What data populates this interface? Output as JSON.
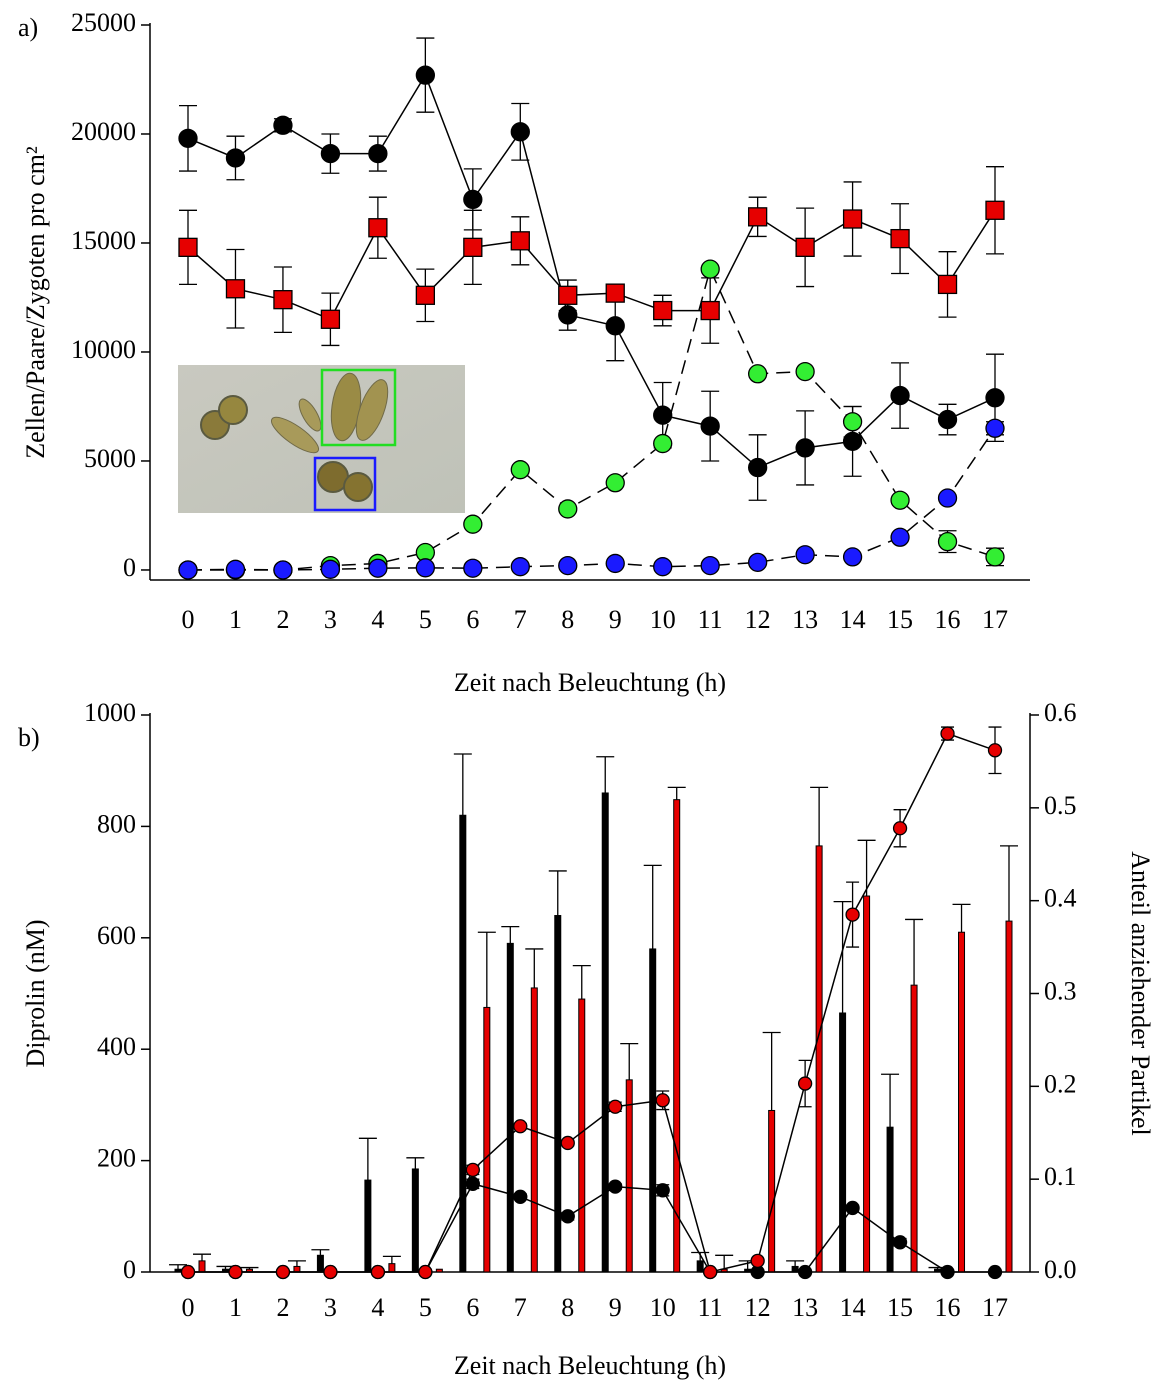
{
  "chart_data": [
    {
      "type": "line",
      "label": "a)",
      "ylabel": "Zellen/Paare/Zygoten pro cm²",
      "xlabel": "Zeit nach Beleuchtung (h)",
      "categories": [
        "0",
        "1",
        "2",
        "3",
        "4",
        "5",
        "6",
        "7",
        "8",
        "9",
        "10",
        "11",
        "12",
        "13",
        "14",
        "15",
        "16",
        "17"
      ],
      "ylim": [
        -460,
        25000
      ],
      "yticks": [
        0,
        5000,
        10000,
        15000,
        20000,
        25000
      ],
      "series": [
        {
          "color": "#000000",
          "marker": "circle",
          "dashed": false,
          "values": [
            19800,
            18900,
            20400,
            19100,
            19100,
            22700,
            17000,
            20100,
            11700,
            11200,
            7100,
            6600,
            4700,
            5600,
            5900,
            8000,
            6900,
            7900
          ],
          "errors": [
            1500,
            1000,
            300,
            900,
            800,
            1700,
            1400,
            1300,
            700,
            1600,
            1500,
            1600,
            1500,
            1700,
            1600,
            1500,
            700,
            2000
          ]
        },
        {
          "color": "#e60000",
          "marker": "square",
          "dashed": false,
          "values": [
            14800,
            12900,
            12400,
            11500,
            15700,
            12600,
            14800,
            15100,
            12600,
            12700,
            11900,
            11900,
            16200,
            14800,
            16100,
            15200,
            13100,
            16500
          ],
          "errors": [
            1700,
            1800,
            1500,
            1200,
            1400,
            1200,
            1700,
            1100,
            700,
            300,
            700,
            1500,
            900,
            1800,
            1700,
            1600,
            1500,
            2000
          ]
        },
        {
          "color": "#33ee33",
          "marker": "circle",
          "dashed": true,
          "values": [
            0,
            0,
            0,
            200,
            300,
            800,
            2100,
            4600,
            2800,
            4000,
            5800,
            13800,
            9000,
            9100,
            6800,
            3200,
            1300,
            600
          ],
          "errors": [
            0,
            0,
            0,
            0,
            0,
            0,
            0,
            0,
            0,
            0,
            0,
            0,
            0,
            0,
            700,
            0,
            500,
            400
          ]
        },
        {
          "color": "#1a1aff",
          "marker": "circle",
          "dashed": true,
          "values": [
            0,
            30,
            0,
            30,
            80,
            100,
            80,
            150,
            200,
            300,
            150,
            200,
            350,
            700,
            600,
            1500,
            3300,
            6500
          ],
          "errors": [
            0,
            0,
            0,
            0,
            0,
            0,
            0,
            0,
            0,
            0,
            0,
            0,
            0,
            0,
            0,
            0,
            0,
            300
          ]
        }
      ]
    },
    {
      "type": "bar",
      "label": "b)",
      "ylabel": "Diprolin (nM)",
      "y2label": "Anteil anziehender Partikel",
      "xlabel": "Zeit nach Beleuchtung (h)",
      "categories": [
        "0",
        "1",
        "2",
        "3",
        "4",
        "5",
        "6",
        "7",
        "8",
        "9",
        "10",
        "11",
        "12",
        "13",
        "14",
        "15",
        "16",
        "17"
      ],
      "ylim": [
        0,
        1000
      ],
      "yticks": [
        0,
        200,
        400,
        600,
        800,
        1000
      ],
      "y2lim": [
        0,
        0.6
      ],
      "y2ticks": [
        {
          "value": 0,
          "label": "0.0"
        },
        0.1,
        0.2,
        0.3,
        0.4,
        0.5,
        0.6
      ],
      "series": [
        {
          "type": "bar",
          "color": "#000000",
          "values": [
            5,
            5,
            0,
            30,
            165,
            185,
            820,
            590,
            640,
            860,
            580,
            20,
            5,
            10,
            465,
            260,
            5,
            0
          ],
          "errors": [
            8,
            5,
            0,
            10,
            75,
            20,
            110,
            30,
            80,
            65,
            150,
            15,
            15,
            10,
            200,
            95,
            3,
            0
          ]
        },
        {
          "type": "bar",
          "color": "#e60000",
          "values": [
            20,
            5,
            10,
            0,
            15,
            5,
            475,
            510,
            490,
            345,
            848,
            5,
            290,
            765,
            675,
            515,
            610,
            630
          ],
          "errors": [
            12,
            3,
            10,
            0,
            13,
            0,
            135,
            70,
            60,
            65,
            22,
            25,
            140,
            105,
            100,
            118,
            50,
            135
          ]
        },
        {
          "type": "line",
          "axis": "y2",
          "color": "#000000",
          "values": [
            0,
            0,
            0,
            0,
            0,
            0,
            0.095,
            0.081,
            0.06,
            0.092,
            0.088,
            0,
            0,
            0,
            0.069,
            0.032,
            0,
            0
          ],
          "errors": [
            0,
            0,
            0,
            0,
            0,
            0,
            0.005,
            0.003,
            0.004,
            0.003,
            0.006,
            0,
            0,
            0,
            0.003,
            0.004,
            0,
            0
          ]
        },
        {
          "type": "line",
          "axis": "y2",
          "color": "#e60000",
          "values": [
            0,
            0,
            0,
            0,
            0,
            0,
            0.11,
            0.157,
            0.139,
            0.178,
            0.185,
            0,
            0.012,
            0.203,
            0.385,
            0.478,
            0.58,
            0.562
          ],
          "errors": [
            0,
            0,
            0,
            0,
            0,
            0,
            0.005,
            0.003,
            0.003,
            0.005,
            0.01,
            0,
            0,
            0.025,
            0.035,
            0.02,
            0.007,
            0.025
          ]
        }
      ]
    }
  ]
}
